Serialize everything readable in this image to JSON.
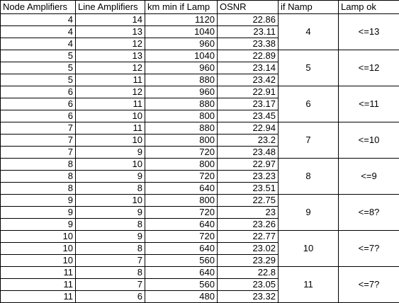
{
  "table": {
    "headers": [
      "Node Amplifiers",
      "Line Amplifiers",
      "km min if Lamp",
      "OSNR",
      "if Namp",
      "Lamp ok"
    ],
    "groups": [
      {
        "if_namp": "4",
        "lamp_ok": "<=13",
        "rows": [
          {
            "node": "4",
            "line": "14",
            "km": "1120",
            "osnr": "22.86"
          },
          {
            "node": "4",
            "line": "13",
            "km": "1040",
            "osnr": "23.11"
          },
          {
            "node": "4",
            "line": "12",
            "km": "960",
            "osnr": "23.38"
          }
        ]
      },
      {
        "if_namp": "5",
        "lamp_ok": "<=12",
        "rows": [
          {
            "node": "5",
            "line": "13",
            "km": "1040",
            "osnr": "22.89"
          },
          {
            "node": "5",
            "line": "12",
            "km": "960",
            "osnr": "23.14"
          },
          {
            "node": "5",
            "line": "11",
            "km": "880",
            "osnr": "23.42"
          }
        ]
      },
      {
        "if_namp": "6",
        "lamp_ok": "<=11",
        "rows": [
          {
            "node": "6",
            "line": "12",
            "km": "960",
            "osnr": "22.91"
          },
          {
            "node": "6",
            "line": "11",
            "km": "880",
            "osnr": "23.17"
          },
          {
            "node": "6",
            "line": "10",
            "km": "800",
            "osnr": "23.45"
          }
        ]
      },
      {
        "if_namp": "7",
        "lamp_ok": "<=10",
        "rows": [
          {
            "node": "7",
            "line": "11",
            "km": "880",
            "osnr": "22.94"
          },
          {
            "node": "7",
            "line": "10",
            "km": "800",
            "osnr": "23.2"
          },
          {
            "node": "7",
            "line": "9",
            "km": "720",
            "osnr": "23.48"
          }
        ]
      },
      {
        "if_namp": "8",
        "lamp_ok": "<=9",
        "rows": [
          {
            "node": "8",
            "line": "10",
            "km": "800",
            "osnr": "22.97"
          },
          {
            "node": "8",
            "line": "9",
            "km": "720",
            "osnr": "23.23"
          },
          {
            "node": "8",
            "line": "8",
            "km": "640",
            "osnr": "23.51"
          }
        ]
      },
      {
        "if_namp": "9",
        "lamp_ok": "<=8?",
        "rows": [
          {
            "node": "9",
            "line": "10",
            "km": "800",
            "osnr": "22.75"
          },
          {
            "node": "9",
            "line": "9",
            "km": "720",
            "osnr": "23"
          },
          {
            "node": "9",
            "line": "8",
            "km": "640",
            "osnr": "23.26"
          }
        ]
      },
      {
        "if_namp": "10",
        "lamp_ok": "<=7?",
        "rows": [
          {
            "node": "10",
            "line": "9",
            "km": "720",
            "osnr": "22.77"
          },
          {
            "node": "10",
            "line": "8",
            "km": "640",
            "osnr": "23.02"
          },
          {
            "node": "10",
            "line": "7",
            "km": "560",
            "osnr": "23.29"
          }
        ]
      },
      {
        "if_namp": "11",
        "lamp_ok": "<=7?",
        "rows": [
          {
            "node": "11",
            "line": "8",
            "km": "640",
            "osnr": "22.8"
          },
          {
            "node": "11",
            "line": "7",
            "km": "560",
            "osnr": "23.05"
          },
          {
            "node": "11",
            "line": "6",
            "km": "480",
            "osnr": "23.32"
          }
        ]
      }
    ]
  }
}
